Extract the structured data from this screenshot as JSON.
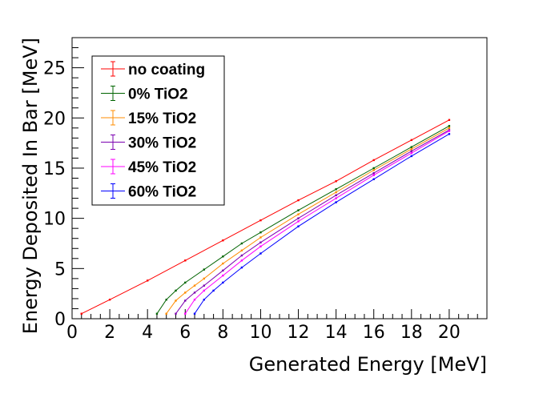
{
  "chart_data": {
    "type": "line",
    "xlabel": "Generated Energy [MeV]",
    "ylabel": "Energy Deposited In Bar [MeV]",
    "xlim": [
      0,
      22
    ],
    "ylim": [
      0,
      28
    ],
    "x_ticks": [
      "0",
      "2",
      "4",
      "6",
      "8",
      "10",
      "12",
      "14",
      "16",
      "18",
      "20"
    ],
    "y_ticks": [
      "0",
      "5",
      "10",
      "15",
      "20",
      "25"
    ],
    "legend_position": "top-left",
    "grid": false,
    "series": [
      {
        "name": "no coating",
        "color": "#ff0000",
        "x": [
          0.5,
          2,
          4,
          6,
          8,
          10,
          12,
          14,
          16,
          18,
          20
        ],
        "y": [
          0.5,
          1.9,
          3.8,
          5.8,
          7.8,
          9.8,
          11.8,
          13.7,
          15.8,
          17.8,
          19.8
        ]
      },
      {
        "name": "0% TiO2",
        "color": "#006400",
        "x": [
          4.5,
          5,
          5.5,
          6,
          7,
          8,
          9,
          10,
          12,
          14,
          16,
          18,
          20
        ],
        "y": [
          0.5,
          1.9,
          2.8,
          3.6,
          4.9,
          6.2,
          7.5,
          8.6,
          10.8,
          12.9,
          15.0,
          17.1,
          19.2
        ]
      },
      {
        "name": "15% TiO2",
        "color": "#ff8c00",
        "x": [
          5,
          5.5,
          6,
          6.5,
          7,
          8,
          9,
          10,
          12,
          14,
          16,
          18,
          20
        ],
        "y": [
          0.5,
          1.8,
          2.6,
          3.3,
          4.0,
          5.5,
          6.8,
          8.1,
          10.4,
          12.6,
          14.8,
          16.9,
          19.0
        ]
      },
      {
        "name": "30% TiO2",
        "color": "#7b00b0",
        "x": [
          5.5,
          6,
          6.5,
          7,
          8,
          9,
          10,
          12,
          14,
          16,
          18,
          20
        ],
        "y": [
          0.5,
          1.8,
          2.6,
          3.3,
          4.8,
          6.3,
          7.6,
          10.0,
          12.3,
          14.5,
          16.7,
          18.8
        ]
      },
      {
        "name": "45% TiO2",
        "color": "#ff00ff",
        "x": [
          6,
          6.5,
          7,
          8,
          9,
          10,
          12,
          14,
          16,
          18,
          20
        ],
        "y": [
          0.5,
          1.9,
          2.8,
          4.3,
          5.8,
          7.2,
          9.7,
          12.0,
          14.3,
          16.5,
          18.7
        ]
      },
      {
        "name": "60% TiO2",
        "color": "#0000ff",
        "x": [
          6.5,
          7,
          7.5,
          8,
          9,
          10,
          12,
          14,
          16,
          18,
          20
        ],
        "y": [
          0.5,
          1.9,
          2.8,
          3.6,
          5.1,
          6.5,
          9.2,
          11.6,
          13.9,
          16.2,
          18.4
        ]
      }
    ]
  }
}
